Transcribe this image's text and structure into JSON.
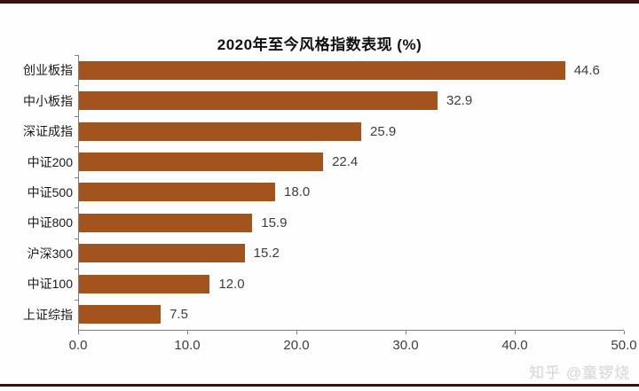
{
  "chart_data": {
    "type": "bar",
    "orientation": "horizontal",
    "title": "2020年至今风格指数表现 (%)",
    "categories": [
      "创业板指",
      "中小板指",
      "深证成指",
      "中证200",
      "中证500",
      "中证800",
      "沪深300",
      "中证100",
      "上证综指"
    ],
    "values": [
      44.6,
      32.9,
      25.9,
      22.4,
      18.0,
      15.9,
      15.2,
      12.0,
      7.5
    ],
    "value_labels": [
      "44.6",
      "32.9",
      "25.9",
      "22.4",
      "18.0",
      "15.9",
      "15.2",
      "12.0",
      "7.5"
    ],
    "xlabel": "",
    "ylabel": "",
    "xlim": [
      0,
      50
    ],
    "x_ticks": [
      "0.0",
      "10.0",
      "20.0",
      "30.0",
      "40.0",
      "50.0"
    ],
    "grid": false,
    "legend": null,
    "bar_color": "#a3541d",
    "axis_color": "#7f7f7f"
  },
  "page": {
    "rule_color": "#3c120d"
  },
  "watermark": {
    "text": "知乎 @童锣烧"
  }
}
